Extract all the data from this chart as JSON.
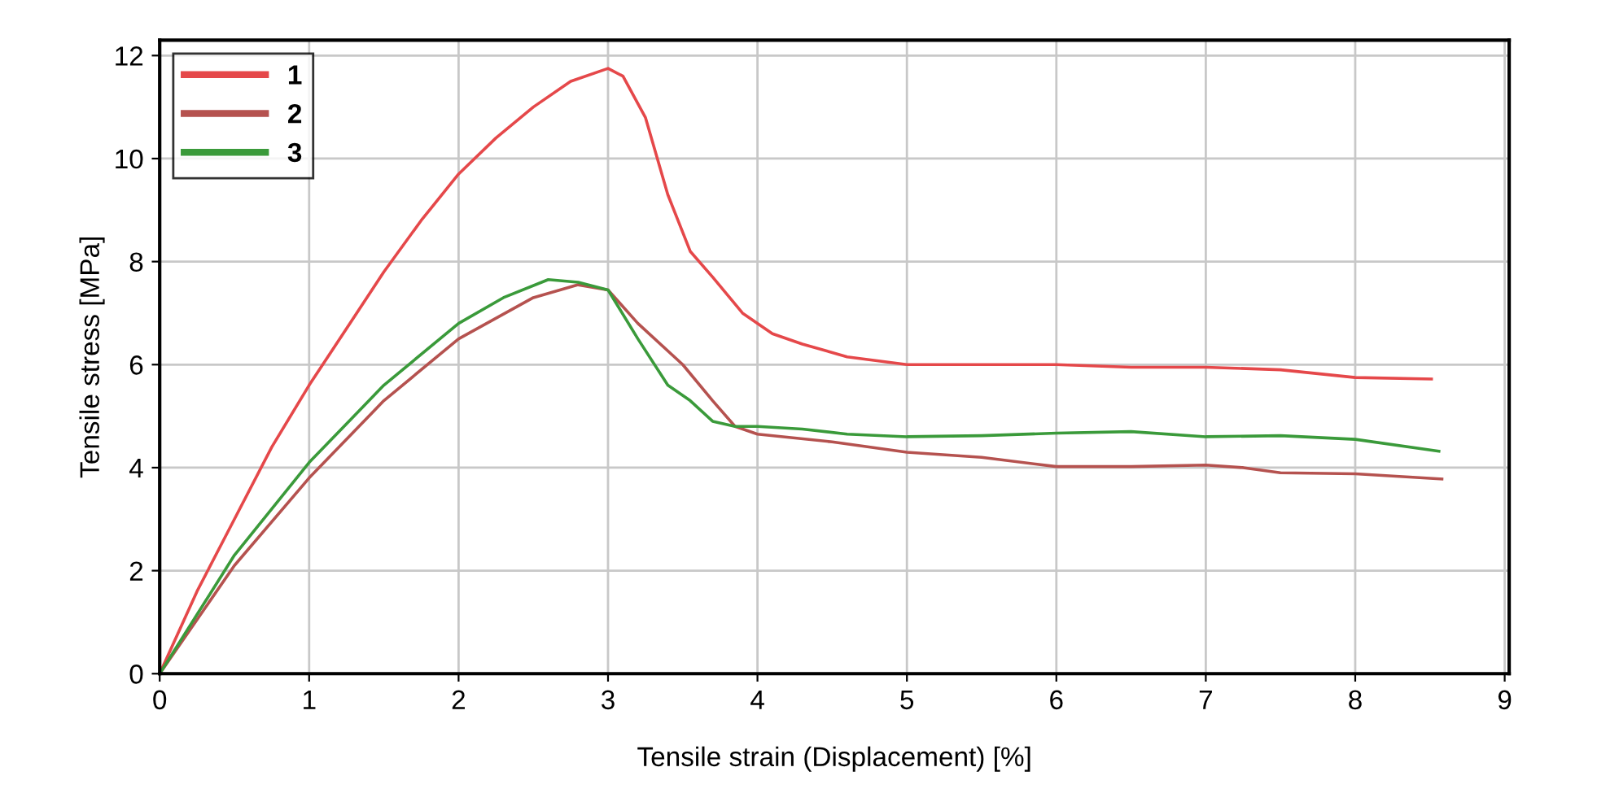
{
  "chart_data": {
    "type": "line",
    "xlabel": "Tensile strain (Displacement) [%]",
    "ylabel": "Tensile stress [MPa]",
    "xlim": [
      0,
      9.03
    ],
    "ylim": [
      0,
      12.3
    ],
    "xticks": [
      0,
      1,
      2,
      3,
      4,
      5,
      6,
      7,
      8,
      9
    ],
    "yticks": [
      0,
      2,
      4,
      6,
      8,
      10,
      12
    ],
    "grid": true,
    "legend": "top left",
    "marker": "none",
    "line_style": "solid",
    "series": [
      {
        "name": "1",
        "color": "#e5484a",
        "x": [
          0,
          0.25,
          0.5,
          0.75,
          1,
          1.25,
          1.5,
          1.75,
          2,
          2.25,
          2.5,
          2.75,
          3.0,
          3.1,
          3.25,
          3.4,
          3.55,
          3.7,
          3.9,
          4.1,
          4.3,
          4.6,
          5,
          5.5,
          6,
          6.5,
          7,
          7.5,
          8,
          8.51
        ],
        "values": [
          0,
          1.6,
          3.0,
          4.4,
          5.6,
          6.7,
          7.8,
          8.8,
          9.7,
          10.4,
          11.0,
          11.5,
          11.75,
          11.6,
          10.8,
          9.3,
          8.2,
          7.7,
          7.0,
          6.6,
          6.4,
          6.15,
          6.0,
          6.0,
          6.0,
          5.95,
          5.95,
          5.9,
          5.75,
          5.72
        ]
      },
      {
        "name": "2",
        "color": "#b5524f",
        "x": [
          0,
          0.5,
          1,
          1.5,
          2,
          2.5,
          2.8,
          3.0,
          3.2,
          3.5,
          3.7,
          3.85,
          4.0,
          4.5,
          5,
          5.5,
          6,
          6.5,
          7,
          7.25,
          7.5,
          8,
          8.58
        ],
        "values": [
          0,
          2.1,
          3.8,
          5.3,
          6.5,
          7.3,
          7.55,
          7.45,
          6.8,
          6.0,
          5.3,
          4.8,
          4.65,
          4.5,
          4.3,
          4.2,
          4.02,
          4.02,
          4.05,
          4.0,
          3.9,
          3.88,
          3.78
        ]
      },
      {
        "name": "3",
        "color": "#3a9a3a",
        "x": [
          0,
          0.5,
          1,
          1.5,
          2,
          2.3,
          2.6,
          2.8,
          3.0,
          3.2,
          3.4,
          3.55,
          3.7,
          3.85,
          4.0,
          4.3,
          4.6,
          5,
          5.5,
          6,
          6.5,
          7,
          7.5,
          8,
          8.56
        ],
        "values": [
          0,
          2.3,
          4.1,
          5.6,
          6.8,
          7.3,
          7.65,
          7.6,
          7.45,
          6.5,
          5.6,
          5.3,
          4.9,
          4.8,
          4.8,
          4.75,
          4.65,
          4.6,
          4.62,
          4.67,
          4.7,
          4.6,
          4.62,
          4.55,
          4.32
        ]
      }
    ]
  }
}
